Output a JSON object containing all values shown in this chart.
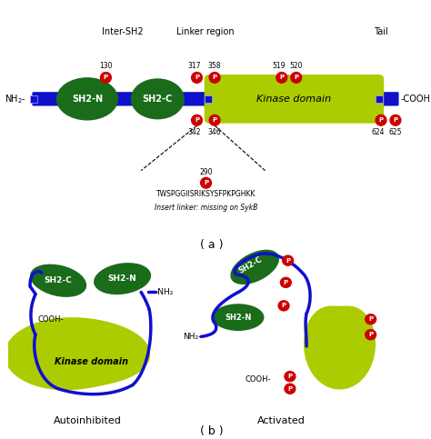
{
  "bg_color": "#ffffff",
  "dark_green": "#1a6b1a",
  "light_green": "#aacc00",
  "blue": "#1010cc",
  "red": "#cc0000",
  "dark_green2": "#206020",
  "kinase_green": "#c8e020",
  "labels": {
    "nh2": "NH₂-",
    "cooh": "-COOH",
    "sh2n": "SH2-N",
    "sh2c": "SH2-C",
    "kinase": "Kinase domain",
    "inter": "Inter-SH2",
    "linker": "Linker region",
    "tail": "Tail",
    "num130": "130",
    "num317": "317",
    "num358": "358",
    "num342": "342",
    "num346": "346",
    "num519": "519",
    "num520": "520",
    "num624": "624",
    "num625": "625",
    "num290": "290",
    "insert": "TWSPGGIISRIKSYSFPKPGHKK",
    "insert2": "Insert linker: missing on SykB",
    "autoinhibited": "Autoinhibited",
    "activated": "Activated",
    "title_a": "( a )",
    "title_b": "( b )"
  }
}
